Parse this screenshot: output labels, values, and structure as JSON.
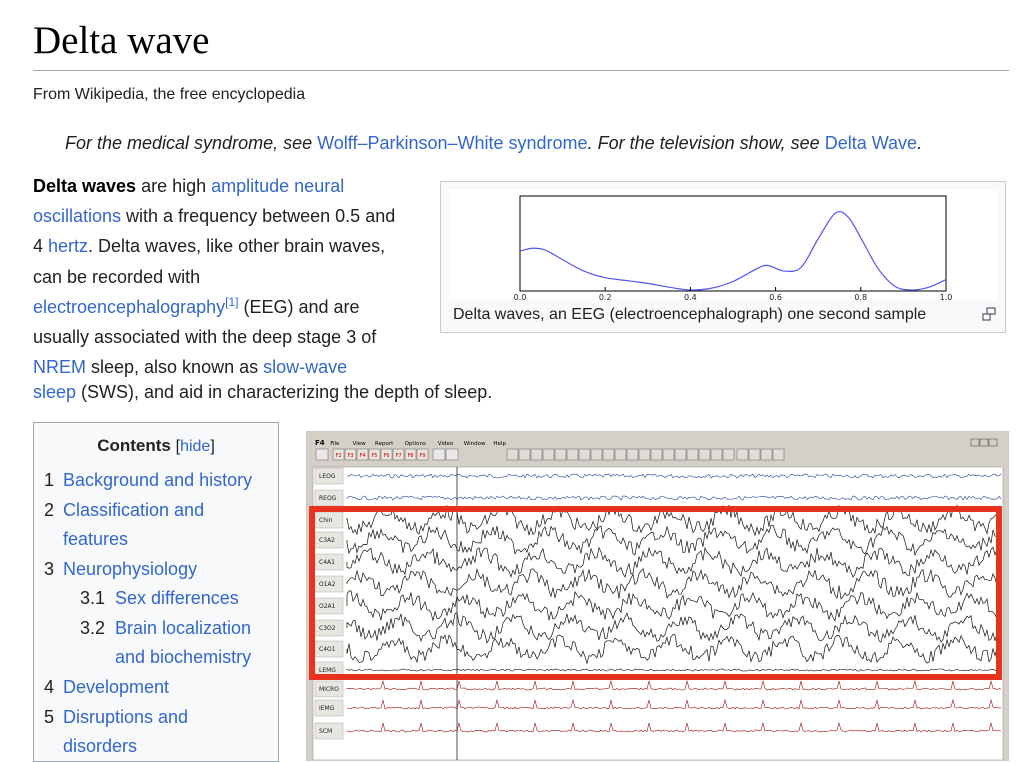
{
  "article": {
    "title": "Delta wave",
    "tagline": "From Wikipedia, the free encyclopedia"
  },
  "hatnote": {
    "prefix": "For the medical syndrome, see ",
    "link1": "Wolff–Parkinson–White syndrome",
    "middle": ". For the television show, see ",
    "link2": "Delta Wave",
    "suffix": "."
  },
  "intro": {
    "bold_term": "Delta waves",
    "t1": " are high ",
    "l1": "amplitude neural oscillations",
    "t2": " with a frequency between 0.5 and 4 ",
    "l2": "hertz",
    "t3": ". Delta waves, like other brain waves, can be recorded with ",
    "l3": "electroencephalography",
    "ref": "[1]",
    "t4": " (EEG) and are usually associated with the deep stage 3 of ",
    "l4": "NREM",
    "t5": " sleep, also known as ",
    "l5a": "slow-wave",
    "l5b": "sleep",
    "t6": " (SWS), and aid in characterizing the depth of sleep."
  },
  "thumbnail": {
    "caption": "Delta waves, an EEG (electroencephalograph) one second sample",
    "enlarge_icon": "enlarge-icon"
  },
  "chart_data": {
    "type": "line",
    "title": "",
    "xlabel": "",
    "ylabel": "",
    "xlim": [
      0.0,
      1.0
    ],
    "xticks": [
      "0.0",
      "0.2",
      "0.4",
      "0.6",
      "0.8",
      "1.0"
    ],
    "grid": false,
    "line_color": "#5555ee",
    "series": [
      {
        "x": [
          0.0,
          0.03,
          0.06,
          0.1,
          0.15,
          0.2,
          0.25,
          0.3,
          0.35,
          0.4,
          0.45,
          0.5,
          0.55,
          0.58,
          0.62,
          0.66,
          0.7,
          0.74,
          0.77,
          0.8,
          0.84,
          0.88,
          0.92,
          0.96,
          1.0
        ],
        "y": [
          0.42,
          0.45,
          0.43,
          0.33,
          0.21,
          0.14,
          0.11,
          0.08,
          0.04,
          0.01,
          0.03,
          0.1,
          0.22,
          0.27,
          0.21,
          0.25,
          0.55,
          0.82,
          0.78,
          0.56,
          0.24,
          0.05,
          0.01,
          0.04,
          0.12
        ]
      }
    ]
  },
  "toc": {
    "title": "Contents",
    "bracket_open": "[",
    "hide": "hide",
    "bracket_close": "]",
    "items": [
      {
        "num": "1",
        "label": "Background and history"
      },
      {
        "num": "2",
        "label_line1": "Classification and",
        "label_line2": "features"
      },
      {
        "num": "3",
        "label": "Neurophysiology"
      },
      {
        "num": "3.1",
        "label": "Sex differences"
      },
      {
        "num": "3.2",
        "label_line1": "Brain localization",
        "label_line2": "and biochemistry"
      },
      {
        "num": "4",
        "label": "Development"
      },
      {
        "num": "5",
        "label_line1": "Disruptions and",
        "label_line2": "disorders"
      }
    ]
  },
  "eeg_figure": {
    "menu": [
      "F4",
      "File",
      "View",
      "Report",
      "Options",
      "Video",
      "Window",
      "Help"
    ],
    "toolbar_keys": [
      "F2",
      "F3",
      "F4",
      "F5",
      "F6",
      "F7",
      "F8",
      "F9"
    ],
    "channels": [
      "LEOG",
      "REOG",
      "Chin",
      "C3A2",
      "C4A1",
      "O1A2",
      "O2A1",
      "C3O2",
      "C4O1",
      "LEMG",
      "MICRO",
      "IEMG",
      "SCM"
    ],
    "highlight_color": "#e8321e"
  }
}
